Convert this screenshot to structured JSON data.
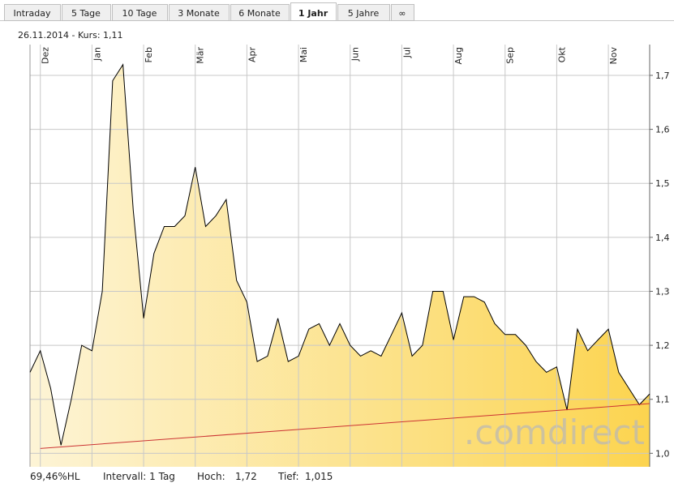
{
  "tabs": [
    "Intraday",
    "5 Tage",
    "10 Tage",
    "3 Monate",
    "6 Monate",
    "1 Jahr",
    "5 Jahre",
    "∞"
  ],
  "active_tab": 5,
  "header": {
    "text": "26.11.2014  -  Kurs: 1,11"
  },
  "chart_data": {
    "type": "area",
    "categories": [
      null,
      "Dez",
      null,
      null,
      null,
      null,
      "Jan",
      null,
      null,
      null,
      null,
      "Feb",
      null,
      null,
      null,
      null,
      "Mär",
      null,
      null,
      null,
      null,
      "Apr",
      null,
      null,
      null,
      null,
      "Mai",
      null,
      null,
      null,
      null,
      "Jun",
      null,
      null,
      null,
      null,
      "Jul",
      null,
      null,
      null,
      null,
      "Aug",
      null,
      null,
      null,
      null,
      "Sep",
      null,
      null,
      null,
      null,
      "Okt",
      null,
      null,
      null,
      null,
      "Nov",
      null,
      null,
      null,
      null
    ],
    "series": [
      {
        "color": "#000000",
        "values": [
          1.15,
          1.19,
          1.12,
          1.015,
          1.1,
          1.2,
          1.19,
          1.3,
          1.69,
          1.72,
          1.45,
          1.25,
          1.37,
          1.42,
          1.42,
          1.44,
          1.53,
          1.42,
          1.44,
          1.47,
          1.32,
          1.28,
          1.17,
          1.18,
          1.25,
          1.17,
          1.18,
          1.23,
          1.24,
          1.2,
          1.24,
          1.2,
          1.18,
          1.19,
          1.18,
          1.22,
          1.26,
          1.18,
          1.2,
          1.3,
          1.3,
          1.21,
          1.29,
          1.29,
          1.28,
          1.24,
          1.22,
          1.22,
          1.2,
          1.17,
          1.15,
          1.16,
          1.08,
          1.23,
          1.19,
          1.21,
          1.23,
          1.15,
          1.12,
          1.09,
          1.11
        ]
      }
    ],
    "trendline": {
      "color": "#cc3333",
      "values": [
        1.009,
        1.092
      ]
    },
    "fill_colors": [
      "#fdf4d6",
      "#fcd44f"
    ],
    "ylim": [
      0.975,
      1.757
    ],
    "yticks": [
      {
        "value": 1.0,
        "label": "1,0"
      },
      {
        "value": 1.1,
        "label": "1,1"
      },
      {
        "value": 1.2,
        "label": "1,2"
      },
      {
        "value": 1.3,
        "label": "1,3"
      },
      {
        "value": 1.4,
        "label": "1,4"
      },
      {
        "value": 1.5,
        "label": "1,5"
      },
      {
        "value": 1.6,
        "label": "1,6"
      },
      {
        "value": 1.7,
        "label": "1,7"
      }
    ],
    "grid": true,
    "watermark": ".comdirect"
  },
  "footer": {
    "range": "69,46%HL",
    "interval": "Intervall: 1 Tag",
    "high_label": "Hoch:",
    "high": "1,72",
    "low_label": "Tief:",
    "low": "1,015"
  }
}
